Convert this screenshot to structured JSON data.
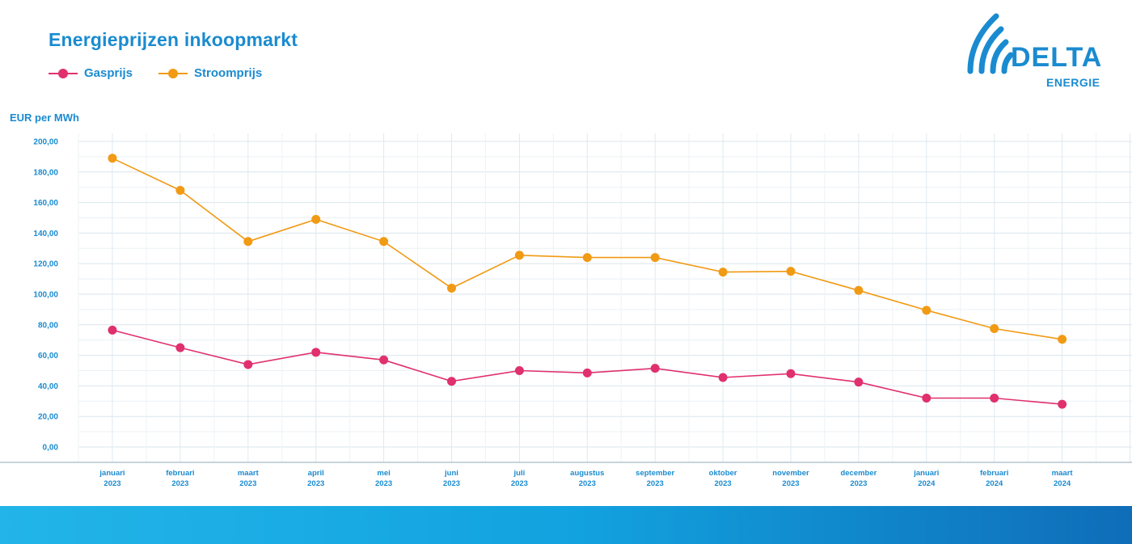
{
  "brand": {
    "name": "DELTA",
    "sub": "ENERGIE",
    "color": "#1a8bd0"
  },
  "chart_data": {
    "type": "line",
    "title": "Energieprijzen inkoopmarkt",
    "ylabel": "EUR per MWh",
    "xlabel": "",
    "ylim": [
      0,
      200
    ],
    "yticks": [
      "0,00",
      "20,00",
      "40,00",
      "60,00",
      "80,00",
      "100,00",
      "120,00",
      "140,00",
      "160,00",
      "180,00",
      "200,00"
    ],
    "categories": [
      [
        "januari",
        "2023"
      ],
      [
        "februari",
        "2023"
      ],
      [
        "maart",
        "2023"
      ],
      [
        "april",
        "2023"
      ],
      [
        "mei",
        "2023"
      ],
      [
        "juni",
        "2023"
      ],
      [
        "juli",
        "2023"
      ],
      [
        "augustus",
        "2023"
      ],
      [
        "september",
        "2023"
      ],
      [
        "oktober",
        "2023"
      ],
      [
        "november",
        "2023"
      ],
      [
        "december",
        "2023"
      ],
      [
        "januari",
        "2024"
      ],
      [
        "februari",
        "2024"
      ],
      [
        "maart",
        "2024"
      ]
    ],
    "series": [
      {
        "name": "Gasprijs",
        "color": "#e0306e",
        "values": [
          76.5,
          65,
          54,
          62,
          57,
          43,
          50,
          48.5,
          51.5,
          45.5,
          48,
          42.5,
          32,
          32,
          28
        ]
      },
      {
        "name": "Stroomprijs",
        "color": "#f19a14",
        "values": [
          189,
          168,
          134.5,
          149,
          134.5,
          104,
          125.5,
          124,
          124,
          114.5,
          115,
          102.5,
          89.5,
          77.5,
          70.5
        ]
      }
    ],
    "grid": true,
    "legend": "top-left"
  }
}
